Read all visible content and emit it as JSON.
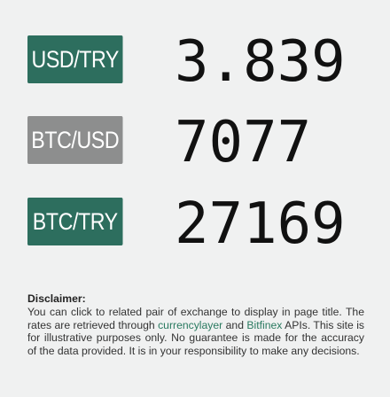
{
  "colors": {
    "active_pair": "#2d6e5e",
    "inactive_pair": "#8d8e8e",
    "link": "#2a7a60",
    "background": "#f0f1f1"
  },
  "rates": [
    {
      "pair": "USD/TRY",
      "value": "3.839",
      "active": true
    },
    {
      "pair": "BTC/USD",
      "value": "7077",
      "active": false
    },
    {
      "pair": "BTC/TRY",
      "value": "27169",
      "active": true
    }
  ],
  "disclaimer": {
    "title": "Disclaimer:",
    "text_before_link1": "You can click to related pair of exchange to display in page title. The rates are retrieved through ",
    "link1": "currencylayer",
    "text_between": " and ",
    "link2": "Bitfinex",
    "text_after": " APIs. This site is for illustrative purposes only. No guarantee is made for the accuracy of the data provided. It is in your responsibility to make any decisions."
  }
}
